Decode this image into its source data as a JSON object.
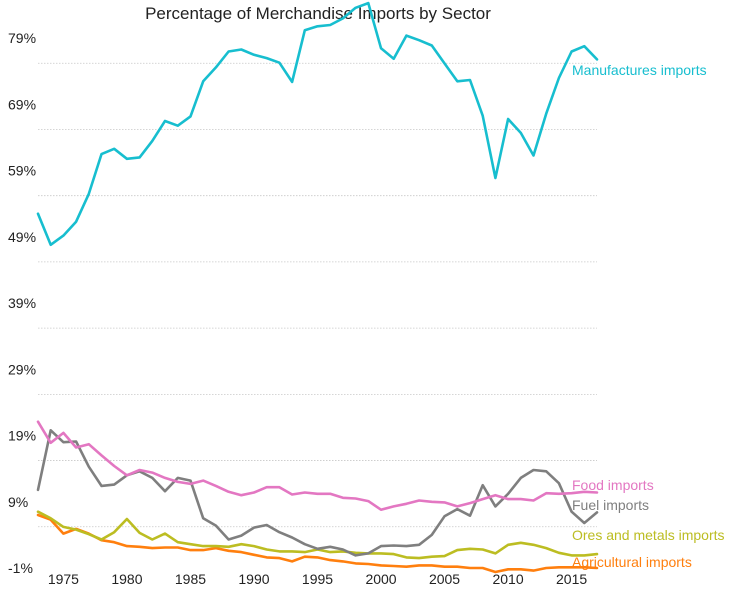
{
  "chart_data": {
    "type": "line",
    "title": "Percentage of Merchandise Imports  by Sector",
    "xlabel": "",
    "ylabel": "",
    "xlim": [
      1973,
      2017
    ],
    "ylim": [
      -1,
      81
    ],
    "grid": true,
    "grid_axis": "y",
    "legend": "inline-right",
    "x_ticks": [
      1975,
      1980,
      1985,
      1990,
      1995,
      2000,
      2005,
      2010,
      2015
    ],
    "x_tick_labels": [
      "1975",
      "1980",
      "1985",
      "1990",
      "1995",
      "2000",
      "2005",
      "2010",
      "2015"
    ],
    "y_ticks": [
      -1,
      9,
      19,
      29,
      39,
      49,
      59,
      69,
      79
    ],
    "y_tick_labels": [
      "-1%",
      "9%",
      "19%",
      "29%",
      "39%",
      "49%",
      "59%",
      "69%",
      "79%"
    ],
    "x": [
      1973,
      1974,
      1975,
      1976,
      1977,
      1978,
      1979,
      1980,
      1981,
      1982,
      1983,
      1984,
      1985,
      1986,
      1987,
      1988,
      1989,
      1990,
      1991,
      1992,
      1993,
      1994,
      1995,
      1996,
      1997,
      1998,
      1999,
      2000,
      2001,
      2002,
      2003,
      2004,
      2005,
      2006,
      2007,
      2008,
      2009,
      2010,
      2011,
      2012,
      2013,
      2014,
      2015,
      2016,
      2017
    ],
    "series": [
      {
        "name": "Manufactures imports",
        "color": "#17becf",
        "values": [
          52.5,
          47.8,
          49.2,
          51.3,
          55.5,
          61.5,
          62.3,
          60.8,
          61.0,
          63.5,
          66.5,
          65.8,
          67.2,
          72.5,
          74.6,
          77.0,
          77.3,
          76.5,
          76.0,
          75.3,
          72.4,
          80.2,
          80.8,
          81.0,
          82.0,
          83.6,
          84.3,
          77.5,
          75.9,
          79.4,
          78.7,
          77.9,
          75.2,
          72.5,
          72.7,
          67.3,
          57.9,
          66.8,
          64.7,
          61.3,
          67.6,
          73.0,
          77.0,
          77.8,
          75.8
        ]
      },
      {
        "name": "Food imports",
        "color": "#e377c2",
        "values": [
          21.1,
          17.9,
          19.4,
          17.2,
          17.7,
          16.0,
          14.4,
          13.0,
          13.8,
          13.4,
          12.6,
          12.0,
          11.7,
          12.2,
          11.4,
          10.5,
          10.0,
          10.4,
          11.2,
          11.2,
          10.1,
          10.4,
          10.2,
          10.2,
          9.6,
          9.5,
          9.1,
          7.8,
          8.3,
          8.7,
          9.2,
          9.0,
          8.9,
          8.3,
          8.8,
          9.4,
          10.0,
          9.4,
          9.4,
          9.2,
          10.3,
          10.2,
          10.3,
          10.5,
          10.4
        ]
      },
      {
        "name": "Fuel imports",
        "color": "#7f7f7f",
        "values": [
          10.8,
          19.8,
          18.0,
          18.1,
          14.3,
          11.4,
          11.6,
          13.0,
          13.6,
          12.6,
          10.6,
          12.6,
          12.2,
          6.5,
          5.4,
          3.3,
          3.9,
          5.1,
          5.5,
          4.4,
          3.6,
          2.6,
          1.9,
          2.2,
          1.8,
          0.9,
          1.2,
          2.3,
          2.4,
          2.3,
          2.5,
          4.0,
          6.8,
          7.9,
          6.9,
          11.5,
          8.3,
          10.2,
          12.6,
          13.8,
          13.6,
          11.8,
          7.5,
          5.8,
          7.4
        ]
      },
      {
        "name": "Ores and metals imports",
        "color": "#bcbd22",
        "values": [
          7.5,
          6.5,
          5.2,
          4.8,
          4.1,
          3.3,
          4.4,
          6.4,
          4.3,
          3.3,
          4.2,
          2.9,
          2.6,
          2.3,
          2.3,
          2.2,
          2.6,
          2.3,
          1.8,
          1.5,
          1.5,
          1.4,
          1.8,
          1.4,
          1.5,
          1.3,
          1.2,
          1.2,
          1.1,
          0.6,
          0.5,
          0.7,
          0.8,
          1.7,
          1.9,
          1.8,
          1.2,
          2.5,
          2.8,
          2.5,
          2.0,
          1.3,
          0.9,
          0.9,
          1.1
        ]
      },
      {
        "name": "Agricultural imports",
        "color": "#ff7f0e",
        "values": [
          7.0,
          6.3,
          4.2,
          4.9,
          4.2,
          3.2,
          2.9,
          2.3,
          2.2,
          2.0,
          2.1,
          2.1,
          1.7,
          1.7,
          2.0,
          1.6,
          1.4,
          1.0,
          0.6,
          0.5,
          0.0,
          0.7,
          0.6,
          0.2,
          0.0,
          -0.3,
          -0.4,
          -0.6,
          -0.7,
          -0.8,
          -0.6,
          -0.6,
          -0.8,
          -0.8,
          -1.0,
          -1.0,
          -1.6,
          -1.2,
          -1.2,
          -1.4,
          -1.0,
          -0.9,
          -0.9,
          -0.9,
          -1.0
        ]
      }
    ]
  }
}
